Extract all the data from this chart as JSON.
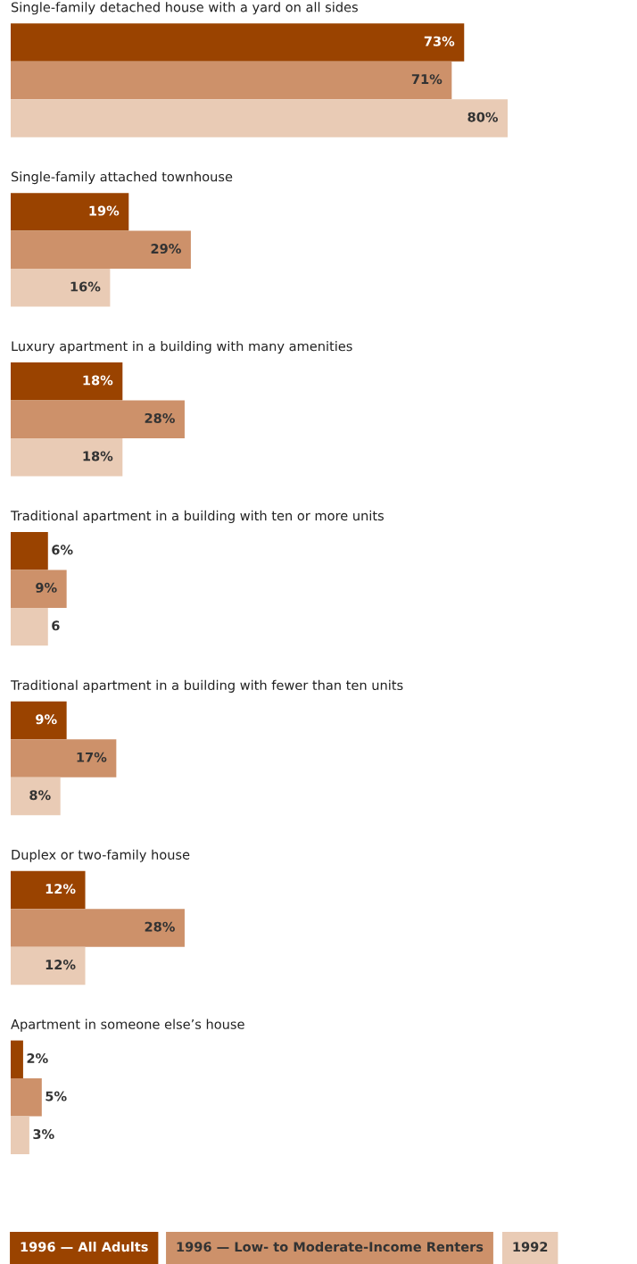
{
  "chart_data": {
    "type": "bar",
    "orientation": "horizontal",
    "legend": "bottom",
    "categories": [
      "Single-family detached house with a yard on all sides",
      "Single-family attached townhouse",
      "Luxury apartment in a building with many amenities",
      "Traditional apartment in a building with ten or more units",
      "Traditional apartment in a building with fewer than ten units",
      "Duplex or two-family house",
      "Apartment in someone else’s house"
    ],
    "series": [
      {
        "name": "1996 — All Adults",
        "color": "#9a4300",
        "values": [
          73,
          19,
          18,
          6,
          9,
          12,
          2
        ],
        "value_labels": [
          "73%",
          "19%",
          "18%",
          "6%",
          "9%",
          "12%",
          "2%"
        ]
      },
      {
        "name": "1996 — Low- to Moderate-Income Renters",
        "color": "#cd916a",
        "values": [
          71,
          29,
          28,
          9,
          17,
          28,
          5
        ],
        "value_labels": [
          "71%",
          "29%",
          "28%",
          "9%",
          "17%",
          "28%",
          "5%"
        ]
      },
      {
        "name": "1992",
        "color": "#e9cbb5",
        "values": [
          80,
          16,
          18,
          6,
          8,
          12,
          3
        ],
        "value_labels": [
          "80%",
          "16%",
          "18%",
          "6",
          "8%",
          "12%",
          "3%"
        ]
      }
    ]
  }
}
